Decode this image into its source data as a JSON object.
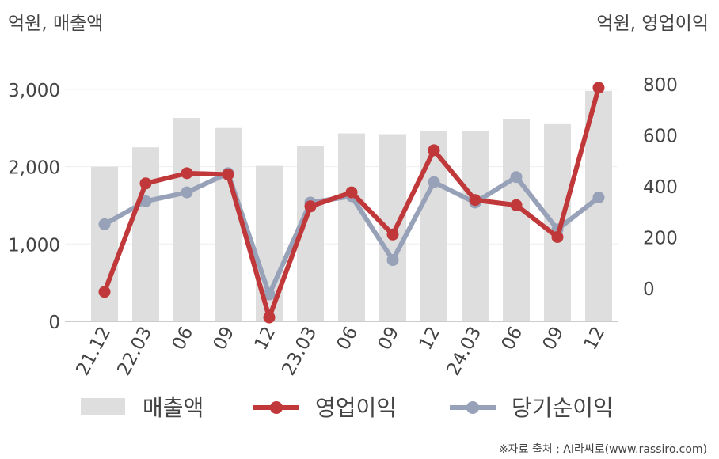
{
  "chart_data": {
    "type": "bar",
    "categories": [
      "21.12",
      "22.03",
      "06",
      "09",
      "12",
      "23.03",
      "06",
      "09",
      "12",
      "24.03",
      "06",
      "09",
      "12"
    ],
    "y_left_label": "억원, 매출액",
    "y_right_label": "억원, 영업이익",
    "y_left_ticks": [
      "0",
      "1,000",
      "2,000",
      "3,000"
    ],
    "y_right_ticks": [
      "0",
      "200",
      "400",
      "600",
      "800"
    ],
    "y_left_range": [
      0,
      3000
    ],
    "y_right_range": [
      0,
      800
    ],
    "series": [
      {
        "name": "매출액",
        "type": "bar",
        "axis": "left",
        "color": "#dedede",
        "values": [
          2000,
          2250,
          2630,
          2500,
          2010,
          2270,
          2430,
          2420,
          2460,
          2460,
          2620,
          2550,
          2980
        ]
      },
      {
        "name": "영업이익",
        "type": "line",
        "axis": "right",
        "color": "#c0383a",
        "values": [
          -15,
          410,
          450,
          445,
          -115,
          320,
          375,
          210,
          540,
          345,
          325,
          200,
          785
        ]
      },
      {
        "name": "당기순이익",
        "type": "line",
        "axis": "right",
        "color": "#97a1b8",
        "values": [
          250,
          340,
          375,
          450,
          -25,
          335,
          360,
          110,
          415,
          335,
          435,
          230,
          355
        ]
      }
    ],
    "grid": true,
    "legend": "bottom",
    "source": "※자료 출처 : AI라씨로(www.rassiro.com)"
  }
}
